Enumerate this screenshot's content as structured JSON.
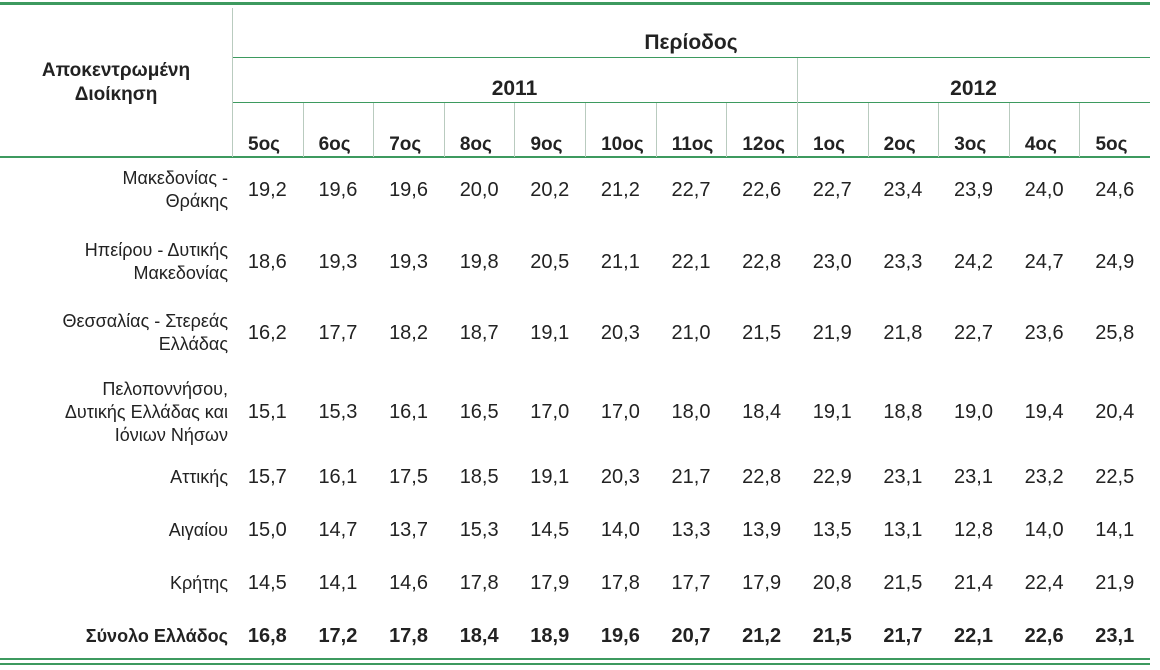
{
  "header": {
    "column_title_lines": [
      "Αποκεντρωμένη",
      "Διοίκηση"
    ],
    "period_title": "Περίοδος",
    "years": [
      {
        "label": "2011",
        "periods": [
          "5ος",
          "6ος",
          "7ος",
          "8ος",
          "9ος",
          "10ος",
          "11ος",
          "12ος"
        ]
      },
      {
        "label": "2012",
        "periods": [
          "1ος",
          "2ος",
          "3ος",
          "4ος",
          "5ος"
        ]
      }
    ]
  },
  "table": {
    "rows": [
      {
        "label_lines": [
          "Μακεδονίας -",
          "Θράκης"
        ],
        "values": [
          "19,2",
          "19,6",
          "19,6",
          "20,0",
          "20,2",
          "21,2",
          "22,7",
          "22,6",
          "22,7",
          "23,4",
          "23,9",
          "24,0",
          "24,6"
        ]
      },
      {
        "label_lines": [
          "Ηπείρου - Δυτικής",
          "Μακεδονίας"
        ],
        "values": [
          "18,6",
          "19,3",
          "19,3",
          "19,8",
          "20,5",
          "21,1",
          "22,1",
          "22,8",
          "23,0",
          "23,3",
          "24,2",
          "24,7",
          "24,9"
        ]
      },
      {
        "label_lines": [
          "Θεσσαλίας - Στερεάς",
          "Ελλάδας"
        ],
        "values": [
          "16,2",
          "17,7",
          "18,2",
          "18,7",
          "19,1",
          "20,3",
          "21,0",
          "21,5",
          "21,9",
          "21,8",
          "22,7",
          "23,6",
          "25,8"
        ]
      },
      {
        "label_lines": [
          "Πελοποννήσου,",
          "Δυτικής Ελλάδας και",
          "Ιόνιων Νήσων"
        ],
        "values": [
          "15,1",
          "15,3",
          "16,1",
          "16,5",
          "17,0",
          "17,0",
          "18,0",
          "18,4",
          "19,1",
          "18,8",
          "19,0",
          "19,4",
          "20,4"
        ]
      },
      {
        "label_lines": [
          "Αττικής"
        ],
        "values": [
          "15,7",
          "16,1",
          "17,5",
          "18,5",
          "19,1",
          "20,3",
          "21,7",
          "22,8",
          "22,9",
          "23,1",
          "23,1",
          "23,2",
          "22,5"
        ]
      },
      {
        "label_lines": [
          "Αιγαίου"
        ],
        "values": [
          "15,0",
          "14,7",
          "13,7",
          "15,3",
          "14,5",
          "14,0",
          "13,3",
          "13,9",
          "13,5",
          "13,1",
          "12,8",
          "14,0",
          "14,1"
        ]
      },
      {
        "label_lines": [
          "Κρήτης"
        ],
        "values": [
          "14,5",
          "14,1",
          "14,6",
          "17,8",
          "17,9",
          "17,8",
          "17,7",
          "17,9",
          "20,8",
          "21,5",
          "21,4",
          "22,4",
          "21,9"
        ]
      }
    ],
    "total": {
      "label_lines": [
        "Σύνολο Ελλάδος"
      ],
      "values": [
        "16,8",
        "17,2",
        "17,8",
        "18,4",
        "18,9",
        "19,6",
        "20,7",
        "21,2",
        "21,5",
        "21,7",
        "22,1",
        "22,6",
        "23,1"
      ]
    }
  }
}
